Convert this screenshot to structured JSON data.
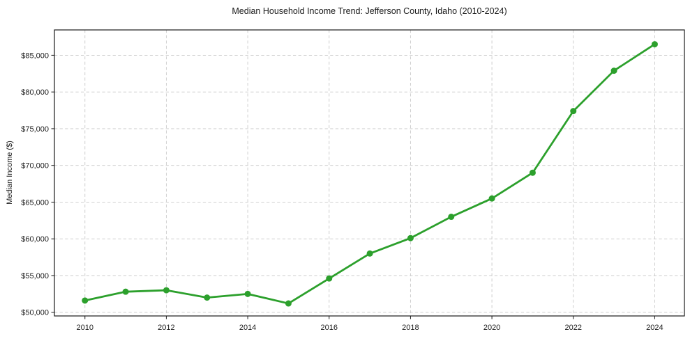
{
  "chart_data": {
    "type": "line",
    "title": "Median Household Income Trend: Jefferson County, Idaho (2010-2024)",
    "xlabel": "",
    "ylabel": "Median Income ($)",
    "x": [
      2010,
      2011,
      2012,
      2013,
      2014,
      2015,
      2016,
      2017,
      2018,
      2019,
      2020,
      2021,
      2022,
      2023,
      2024
    ],
    "series": [
      {
        "name": "Median household income",
        "values": [
          51600,
          52800,
          53000,
          52000,
          52500,
          51200,
          54600,
          58000,
          60100,
          63000,
          65500,
          69000,
          77400,
          82900,
          86500
        ]
      }
    ],
    "xticks": [
      2010,
      2012,
      2014,
      2016,
      2018,
      2020,
      2022,
      2024
    ],
    "xtick_labels": [
      "2010",
      "2012",
      "2014",
      "2016",
      "2018",
      "2020",
      "2022",
      "2024"
    ],
    "yticks": [
      50000,
      55000,
      60000,
      65000,
      70000,
      75000,
      80000,
      85000
    ],
    "ytick_labels": [
      "$50,000",
      "$55,000",
      "$60,000",
      "$65,000",
      "$70,000",
      "$75,000",
      "$80,000",
      "$85,000"
    ],
    "xlim": [
      2009.25,
      2024.73
    ],
    "ylim": [
      49500,
      88450
    ],
    "grid": true,
    "grid_style": "dashed",
    "legend": false,
    "marker": "circle",
    "colors": {
      "line": "#2ca02c",
      "marker": "#2ca02c",
      "grid": "#c9c9c9",
      "axis": "#1a1a1a",
      "text": "#1a1a1a",
      "background": "#ffffff"
    }
  }
}
